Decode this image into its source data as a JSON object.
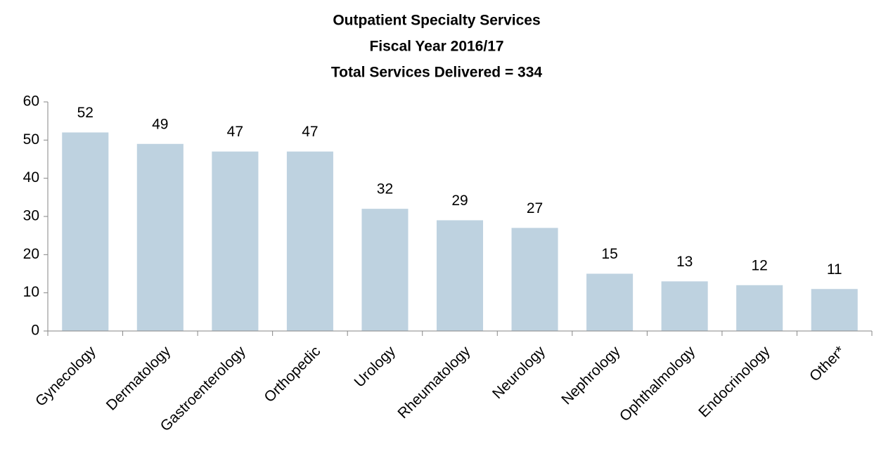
{
  "chart_data": {
    "type": "bar",
    "title": "Outpatient Specialty Services",
    "subtitle": [
      "Fiscal Year 2016/17",
      "Total Services Delivered = 334"
    ],
    "categories": [
      "Gynecology",
      "Dermatology",
      "Gastroenterology",
      "Orthopedic",
      "Urology",
      "Rheumatology",
      "Neurology",
      "Nephrology",
      "Ophthalmology",
      "Endocrinology",
      "Other*"
    ],
    "values": [
      52,
      49,
      47,
      47,
      32,
      29,
      27,
      15,
      13,
      12,
      11
    ],
    "color": "#bed2e0",
    "ylim": [
      0,
      60
    ],
    "yticks": [
      0,
      10,
      20,
      30,
      40,
      50,
      60
    ],
    "grid": false
  }
}
